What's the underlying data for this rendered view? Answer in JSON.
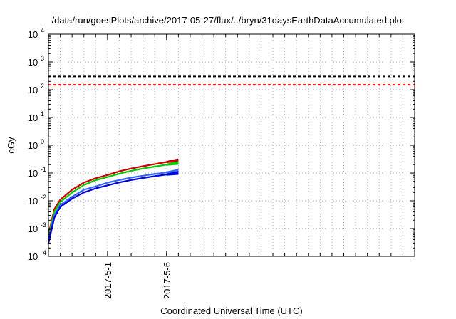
{
  "chart_data": {
    "type": "line",
    "title": "/data/run/goesPlots/archive/2017-05-27/flux/../bryn/31daysEarthDataAccumulated.plot",
    "xlabel": "Coordinated Universal Time (UTC)",
    "ylabel": "cGy",
    "yscale": "log",
    "ylim": [
      0.0001,
      10000
    ],
    "xlim": [
      "2017-04-26",
      "2017-05-27"
    ],
    "grid": true,
    "yticks": [
      {
        "value": 0.0001,
        "base": "10",
        "exp": "-4"
      },
      {
        "value": 0.001,
        "base": "10",
        "exp": "-3"
      },
      {
        "value": 0.01,
        "base": "10",
        "exp": "-2"
      },
      {
        "value": 0.1,
        "base": "10",
        "exp": "-1"
      },
      {
        "value": 1,
        "base": "10",
        "exp": "0"
      },
      {
        "value": 10,
        "base": "10",
        "exp": "1"
      },
      {
        "value": 100,
        "base": "10",
        "exp": "2"
      },
      {
        "value": 1000,
        "base": "10",
        "exp": "3"
      },
      {
        "value": 10000,
        "base": "10",
        "exp": "4"
      }
    ],
    "xticks": [
      {
        "value": "2017-05-01",
        "label": "2017-5-1"
      },
      {
        "value": "2017-05-06",
        "label": "2017-5-6"
      }
    ],
    "series": [
      {
        "color": "#000000",
        "dashed": true,
        "x": [
          "2017-04-26",
          "2017-05-27"
        ],
        "y": [
          300,
          300
        ]
      },
      {
        "color": "#ff0000",
        "dashed": true,
        "x": [
          "2017-04-26",
          "2017-05-27"
        ],
        "y": [
          150,
          150
        ]
      },
      {
        "color": "#cc0000",
        "dashed": false,
        "x": [
          "2017-04-26",
          "2017-04-26T12:00",
          "2017-04-27",
          "2017-04-28",
          "2017-04-29",
          "2017-04-30",
          "2017-05-01",
          "2017-05-02",
          "2017-05-03",
          "2017-05-04",
          "2017-05-05",
          "2017-05-06",
          "2017-05-07"
        ],
        "y": [
          0.0006,
          0.005,
          0.011,
          0.025,
          0.045,
          0.065,
          0.085,
          0.115,
          0.145,
          0.175,
          0.21,
          0.25,
          0.29
        ]
      },
      {
        "color": "#00cc00",
        "dashed": false,
        "x": [
          "2017-04-26",
          "2017-04-26T12:00",
          "2017-04-27",
          "2017-04-28",
          "2017-04-29",
          "2017-04-30",
          "2017-05-01",
          "2017-05-02",
          "2017-05-03",
          "2017-05-04",
          "2017-05-05",
          "2017-05-06",
          "2017-05-07"
        ],
        "y": [
          0.0005,
          0.004,
          0.009,
          0.02,
          0.037,
          0.055,
          0.072,
          0.095,
          0.12,
          0.145,
          0.17,
          0.2,
          0.23
        ]
      },
      {
        "color": "#3366ff",
        "dashed": false,
        "x": [
          "2017-04-26",
          "2017-04-26T12:00",
          "2017-04-27",
          "2017-04-28",
          "2017-04-29",
          "2017-04-30",
          "2017-05-01",
          "2017-05-02",
          "2017-05-03",
          "2017-05-04",
          "2017-05-05",
          "2017-05-06",
          "2017-05-07"
        ],
        "y": [
          0.0004,
          0.003,
          0.007,
          0.014,
          0.025,
          0.033,
          0.045,
          0.056,
          0.068,
          0.08,
          0.092,
          0.105,
          0.12
        ]
      },
      {
        "color": "#0000dd",
        "dashed": false,
        "x": [
          "2017-04-26",
          "2017-04-26T12:00",
          "2017-04-27",
          "2017-04-28",
          "2017-04-29",
          "2017-04-30",
          "2017-05-01",
          "2017-05-02",
          "2017-05-03",
          "2017-05-04",
          "2017-05-05",
          "2017-05-06",
          "2017-05-07"
        ],
        "y": [
          0.0003,
          0.0025,
          0.006,
          0.012,
          0.02,
          0.028,
          0.036,
          0.046,
          0.056,
          0.066,
          0.077,
          0.088,
          0.1
        ]
      }
    ]
  }
}
